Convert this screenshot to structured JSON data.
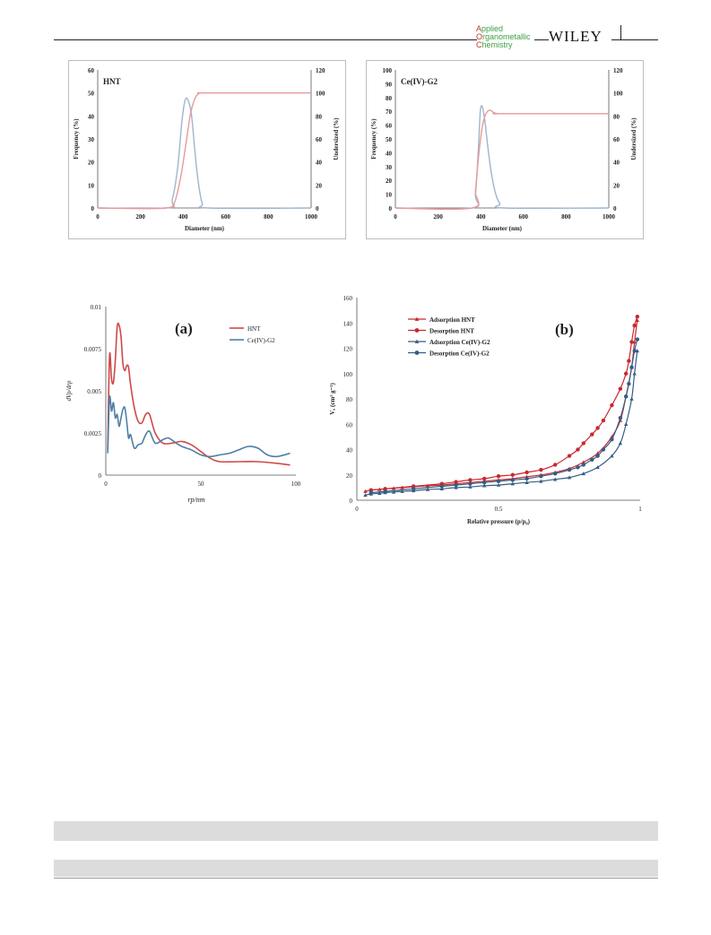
{
  "header": {
    "journal": [
      {
        "cap": "A",
        "rest": "pplied"
      },
      {
        "cap": "O",
        "rest": "rganometallic"
      },
      {
        "cap": "C",
        "rest": "hemistry"
      }
    ],
    "publisher": "WILEY"
  },
  "colors": {
    "red": "#d04848",
    "blue": "#4f7fa6",
    "lightred": "#e89a9a",
    "lightblue": "#9fb6cc"
  },
  "chart_data": [
    {
      "id": "psd-hnt",
      "type": "line",
      "title": "HNT",
      "xlabel": "Diameter (nm)",
      "ylabel": "Frequency (%)",
      "y2label": "Undersized (%)",
      "xlim": [
        0,
        1000
      ],
      "ylim": [
        0,
        60
      ],
      "y2lim": [
        0,
        120
      ],
      "xticks": [
        "0",
        "200",
        "400",
        "600",
        "800",
        "1000"
      ],
      "yticks": [
        "0",
        "10",
        "20",
        "30",
        "40",
        "50",
        "60"
      ],
      "y2ticks": [
        "0",
        "20",
        "40",
        "60",
        "80",
        "100",
        "120"
      ],
      "series": [
        {
          "axis": "y",
          "color": "#9fb6cc",
          "x": [
            0,
            320,
            350,
            375,
            395,
            410,
            425,
            440,
            455,
            470,
            490,
            520,
            1000
          ],
          "y": [
            0,
            0,
            4,
            18,
            38,
            47,
            46.5,
            40,
            25,
            12,
            2,
            0,
            0
          ]
        },
        {
          "axis": "y2",
          "color": "#e89a9a",
          "x": [
            0,
            320,
            360,
            390,
            415,
            435,
            455,
            470,
            480,
            490,
            510,
            1000
          ],
          "y": [
            0,
            0,
            5,
            28,
            58,
            82,
            95,
            99,
            100,
            100,
            100,
            100
          ]
        }
      ]
    },
    {
      "id": "psd-ce",
      "type": "line",
      "title": "Ce(IV)-G2",
      "xlabel": "Diameter (nm)",
      "ylabel": "Frequency (%)",
      "y2label": "Undersized (%)",
      "xlim": [
        0,
        1000
      ],
      "ylim": [
        0,
        100
      ],
      "y2lim": [
        0,
        120
      ],
      "xticks": [
        "0",
        "200",
        "400",
        "600",
        "800",
        "1000"
      ],
      "yticks": [
        "0",
        "10",
        "20",
        "30",
        "40",
        "50",
        "60",
        "70",
        "80",
        "90",
        "100"
      ],
      "y2ticks": [
        "0",
        "20",
        "40",
        "60",
        "80",
        "100",
        "120"
      ],
      "series": [
        {
          "axis": "y",
          "color": "#9fb6cc",
          "x": [
            0,
            360,
            375,
            388,
            398,
            408,
            420,
            435,
            450,
            470,
            490,
            510,
            1000
          ],
          "y": [
            0,
            0,
            10,
            40,
            70,
            73,
            62,
            42,
            25,
            10,
            3,
            0,
            0
          ]
        },
        {
          "axis": "y2",
          "color": "#e89a9a",
          "x": [
            0,
            360,
            375,
            390,
            405,
            420,
            440,
            460,
            480,
            500,
            1000
          ],
          "y": [
            0,
            0,
            15,
            45,
            68,
            80,
            85,
            83,
            82,
            82,
            82
          ]
        }
      ]
    },
    {
      "id": "bjh",
      "type": "line",
      "title": "(a)",
      "xlabel": "rp/nm",
      "ylabel": "dVp/drp",
      "xlim": [
        0,
        100
      ],
      "ylim": [
        0,
        0.01
      ],
      "xticks": [
        "0",
        "50",
        "100"
      ],
      "yticks": [
        "0",
        "0.0025",
        "0.005",
        "0.0075",
        "0.01"
      ],
      "legend": [
        "HNT",
        "Ce(IV)-G2"
      ],
      "series": [
        {
          "name": "HNT",
          "color": "#d04848",
          "x": [
            1,
            2,
            3,
            4,
            5,
            6,
            7,
            8,
            9,
            10,
            11,
            12,
            13,
            15,
            17,
            19,
            21,
            23,
            26,
            30,
            35,
            40,
            45,
            50,
            55,
            60,
            70,
            80,
            90,
            97
          ],
          "y": [
            0.0015,
            0.0071,
            0.0057,
            0.0055,
            0.0068,
            0.0088,
            0.0089,
            0.0082,
            0.0066,
            0.0062,
            0.0065,
            0.0064,
            0.0054,
            0.004,
            0.0032,
            0.0031,
            0.0036,
            0.0036,
            0.0025,
            0.0019,
            0.0019,
            0.002,
            0.0018,
            0.0014,
            0.001,
            0.0008,
            0.0008,
            0.0008,
            0.0007,
            0.0006
          ]
        },
        {
          "name": "Ce(IV)-G2",
          "color": "#4f7fa6",
          "x": [
            1,
            2,
            3,
            4,
            5,
            6,
            7,
            8,
            9,
            10,
            11,
            12,
            13,
            15,
            17,
            19,
            21,
            23,
            26,
            30,
            33,
            37,
            40,
            45,
            50,
            55,
            60,
            65,
            70,
            75,
            80,
            85,
            90,
            97
          ],
          "y": [
            0.0013,
            0.0046,
            0.0038,
            0.0043,
            0.0034,
            0.0036,
            0.0029,
            0.0034,
            0.0039,
            0.004,
            0.0032,
            0.0022,
            0.0024,
            0.0016,
            0.0018,
            0.0019,
            0.0024,
            0.0026,
            0.0019,
            0.0021,
            0.0022,
            0.0019,
            0.0017,
            0.0015,
            0.0012,
            0.0011,
            0.0012,
            0.0013,
            0.0015,
            0.0017,
            0.0016,
            0.0012,
            0.0011,
            0.0013
          ]
        }
      ]
    },
    {
      "id": "bet",
      "type": "scatter",
      "title": "(b)",
      "xlabel": "Relative pressure (p/p₀)",
      "ylabel": "Vₐ (cm³ g⁻¹)",
      "xlim": [
        0,
        1
      ],
      "ylim": [
        0,
        160
      ],
      "xticks": [
        "0",
        "0.5",
        "1"
      ],
      "yticks": [
        "0",
        "20",
        "40",
        "60",
        "80",
        "100",
        "120",
        "140",
        "160"
      ],
      "legend": [
        "Adsorption HNT",
        "Desorption HNT",
        "Adsorption Ce(IV)-G2",
        "Desorption Ce(IV)-G2"
      ],
      "series": [
        {
          "name": "Adsorption HNT",
          "marker": "triangle",
          "color": "#c8282f",
          "x": [
            0.03,
            0.05,
            0.08,
            0.1,
            0.13,
            0.16,
            0.2,
            0.25,
            0.3,
            0.35,
            0.4,
            0.45,
            0.5,
            0.55,
            0.6,
            0.65,
            0.7,
            0.75,
            0.8,
            0.85,
            0.9,
            0.93,
            0.95,
            0.97,
            0.98,
            0.99
          ],
          "y": [
            7,
            8,
            8.5,
            9,
            9.5,
            10,
            10.5,
            11.5,
            12,
            13,
            14,
            15,
            16,
            17,
            18.5,
            20,
            22,
            25,
            30,
            37,
            50,
            63,
            82,
            105,
            125,
            142
          ]
        },
        {
          "name": "Desorption HNT",
          "marker": "circle",
          "color": "#c8282f",
          "x": [
            0.99,
            0.98,
            0.97,
            0.96,
            0.95,
            0.93,
            0.9,
            0.87,
            0.85,
            0.83,
            0.8,
            0.78,
            0.75,
            0.7,
            0.65,
            0.6,
            0.55,
            0.5,
            0.45,
            0.4,
            0.35,
            0.3,
            0.2,
            0.1,
            0.05
          ],
          "y": [
            145,
            138,
            125,
            110,
            100,
            88,
            75,
            63,
            57,
            52,
            45,
            40,
            35,
            28,
            24,
            22,
            20,
            19,
            17,
            16,
            14.5,
            13,
            11,
            9,
            8
          ]
        },
        {
          "name": "Adsorption Ce(IV)-G2",
          "marker": "triangle",
          "color": "#345d85",
          "x": [
            0.03,
            0.05,
            0.08,
            0.1,
            0.13,
            0.16,
            0.2,
            0.25,
            0.3,
            0.35,
            0.4,
            0.45,
            0.5,
            0.55,
            0.6,
            0.65,
            0.7,
            0.75,
            0.8,
            0.85,
            0.9,
            0.93,
            0.95,
            0.97,
            0.98,
            0.99
          ],
          "y": [
            4,
            5,
            5.5,
            6,
            6.5,
            7,
            7.5,
            8.5,
            9,
            10,
            10.5,
            11.5,
            12,
            13,
            14,
            15,
            16.5,
            18,
            21,
            26,
            35,
            45,
            60,
            80,
            100,
            118
          ]
        },
        {
          "name": "Desorption Ce(IV)-G2",
          "marker": "circle",
          "color": "#345d85",
          "x": [
            0.99,
            0.98,
            0.97,
            0.96,
            0.95,
            0.93,
            0.9,
            0.87,
            0.85,
            0.83,
            0.8,
            0.78,
            0.75,
            0.7,
            0.65,
            0.6,
            0.55,
            0.5,
            0.45,
            0.4,
            0.35,
            0.3,
            0.2,
            0.1,
            0.05
          ],
          "y": [
            127,
            118,
            105,
            92,
            82,
            65,
            48,
            40,
            35,
            32,
            28,
            26,
            24,
            21,
            19,
            17,
            16,
            15,
            14,
            13,
            12,
            11,
            9,
            7,
            6
          ]
        }
      ]
    }
  ]
}
